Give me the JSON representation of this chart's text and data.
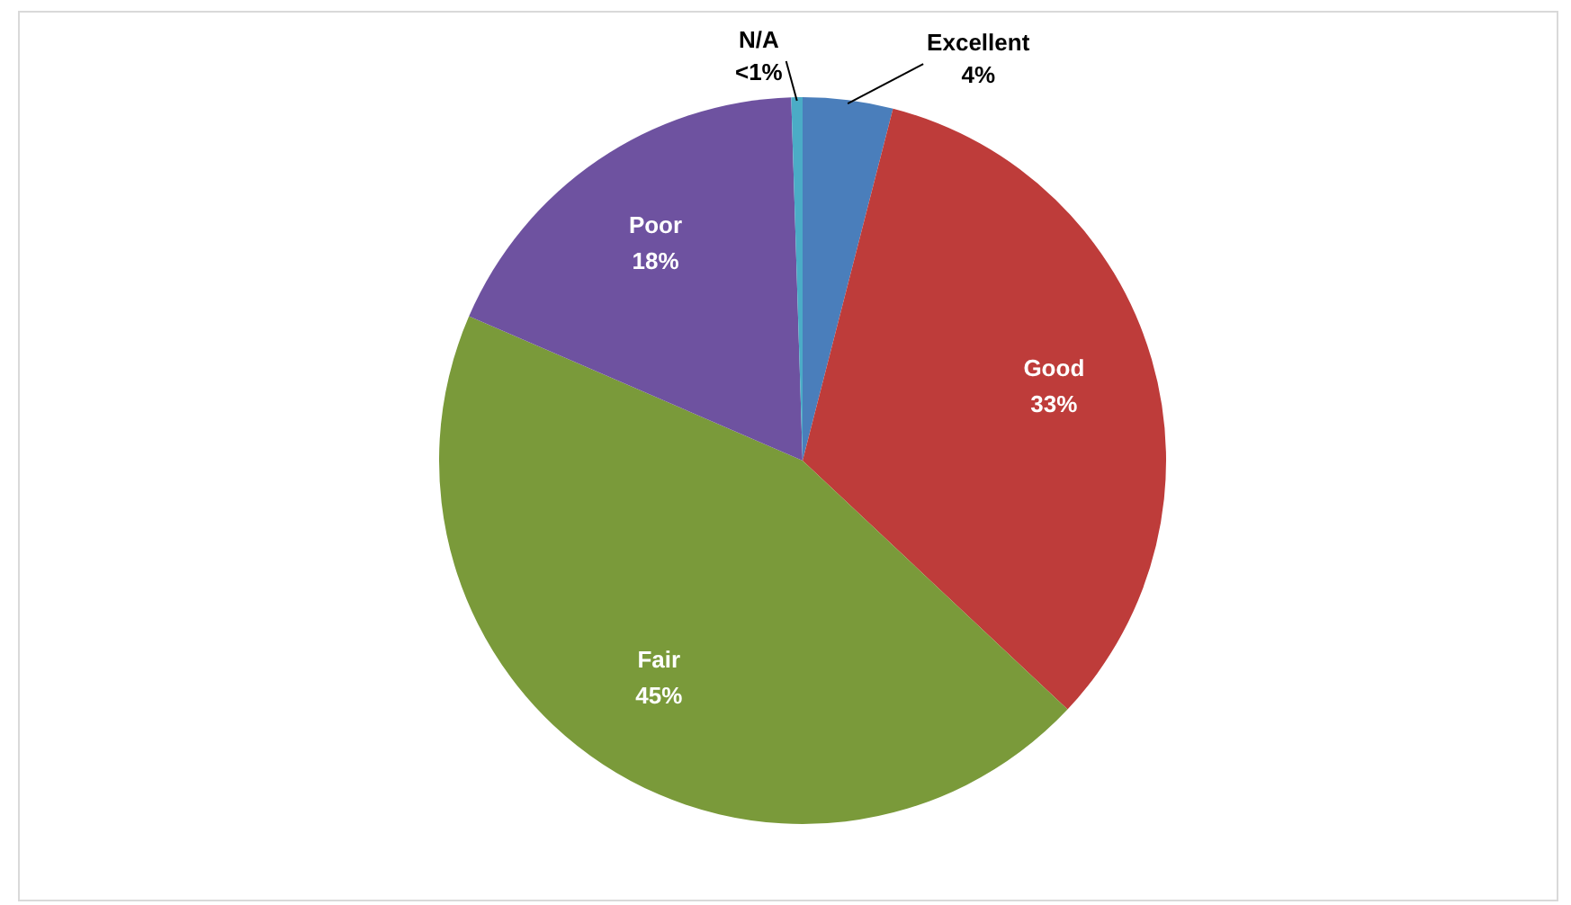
{
  "chart_data": {
    "type": "pie",
    "categories": [
      "Excellent",
      "Good",
      "Fair",
      "Poor",
      "N/A"
    ],
    "values": [
      4,
      33,
      44.5,
      18,
      0.5
    ],
    "value_labels": [
      "4%",
      "33%",
      "45%",
      "18%",
      "<1%"
    ],
    "colors": [
      "#4a7ebb",
      "#be3c3a",
      "#7a9a3a",
      "#6e52a0",
      "#4bacc6"
    ],
    "legend": false
  }
}
